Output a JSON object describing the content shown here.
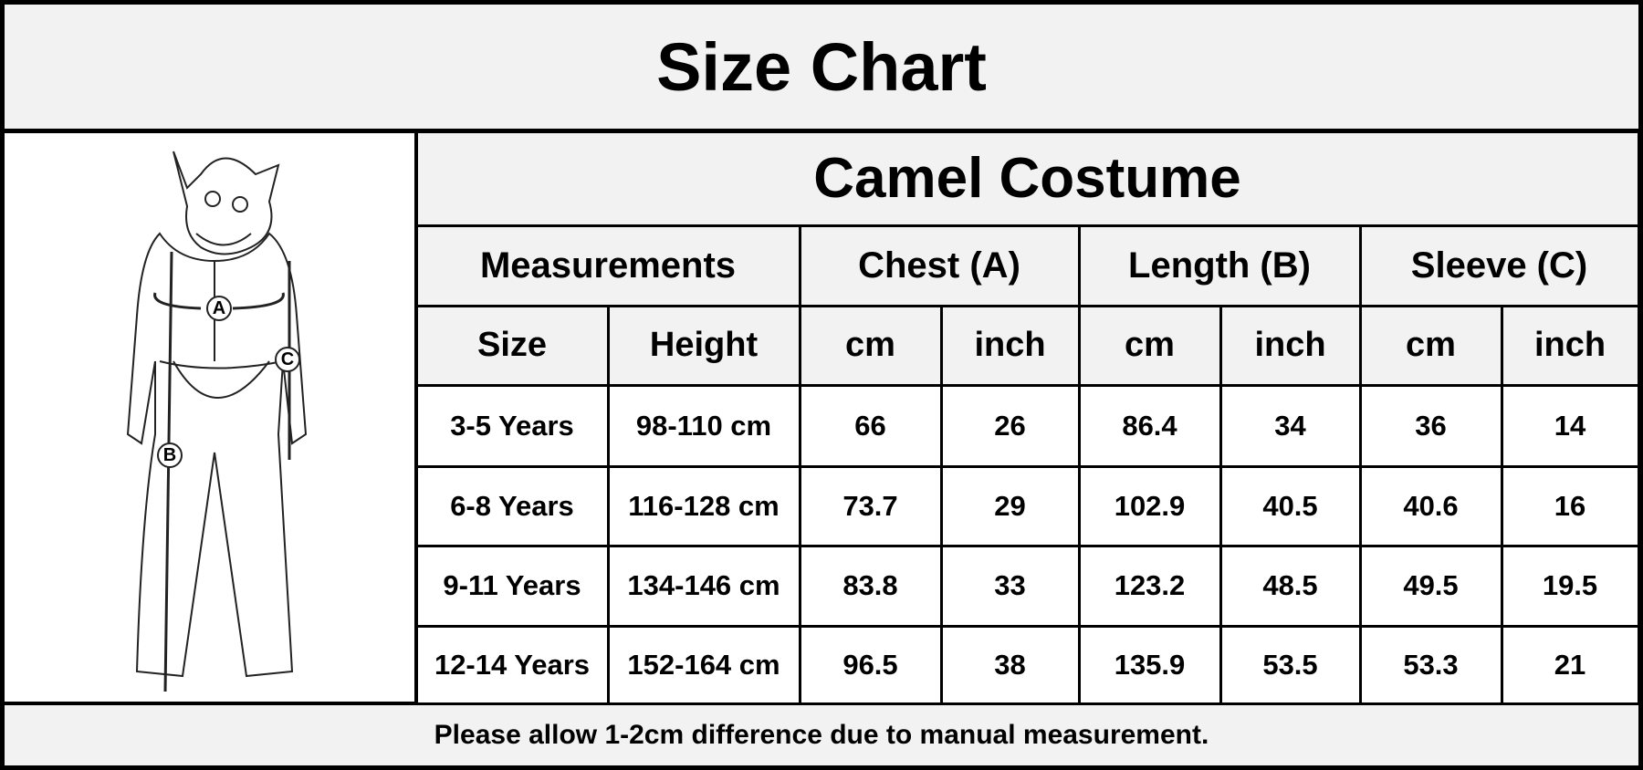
{
  "header": {
    "title": "Size Chart"
  },
  "figure": {
    "labels": [
      "A",
      "B",
      "C"
    ]
  },
  "table": {
    "title": "Camel Costume",
    "groups": [
      "Measurements",
      "Chest (A)",
      "Length (B)",
      "Sleeve (C)"
    ],
    "columns": [
      "Size",
      "Height",
      "cm",
      "inch",
      "cm",
      "inch",
      "cm",
      "inch"
    ],
    "rows": [
      [
        "3-5 Years",
        "98-110 cm",
        66,
        26,
        86.4,
        34,
        36,
        14
      ],
      [
        "6-8 Years",
        "116-128 cm",
        73.7,
        29,
        102.9,
        40.5,
        40.6,
        16
      ],
      [
        "9-11 Years",
        "134-146 cm",
        83.8,
        33,
        123.2,
        48.5,
        49.5,
        19.5
      ],
      [
        "12-14 Years",
        "152-164 cm",
        96.5,
        38,
        135.9,
        53.5,
        53.3,
        21
      ]
    ]
  },
  "footer": {
    "note": "Please allow 1-2cm difference due to manual measurement."
  }
}
